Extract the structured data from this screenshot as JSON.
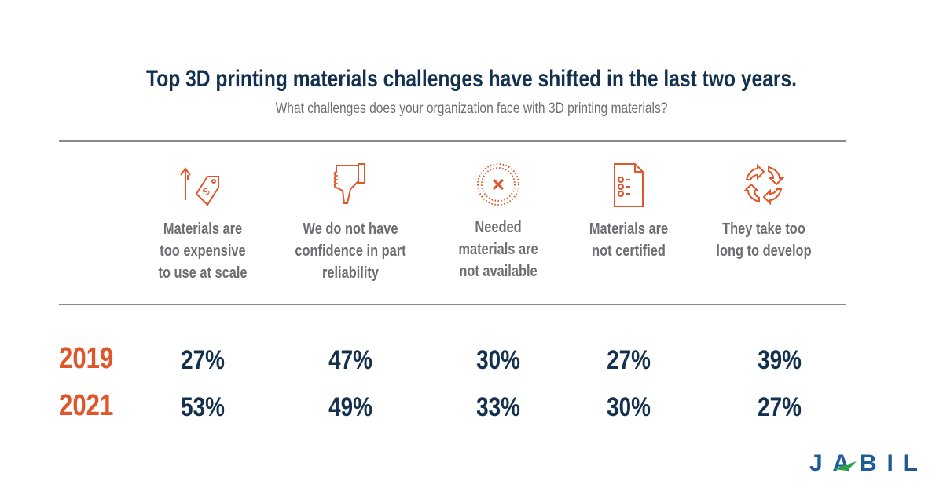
{
  "title": "Top 3D printing materials challenges have shifted in the last two years.",
  "subtitle": "What challenges does your organization face with 3D printing materials?",
  "logo_text": "JABIL",
  "colors": {
    "accent": "#e0552a",
    "navy": "#13304e",
    "gray": "#6d6e71",
    "logo_blue": "#1f5b97",
    "logo_green": "#2aa24a"
  },
  "chart_data": {
    "type": "table",
    "title": "Top 3D printing materials challenges have shifted in the last two years.",
    "categories": [
      {
        "lines": [
          "Materials are",
          "too expensive",
          "to use at scale"
        ],
        "icon": "price-tag-up-icon"
      },
      {
        "lines": [
          "We do not have",
          "confidence in part",
          "reliability"
        ],
        "icon": "thumbs-down-icon"
      },
      {
        "lines": [
          "Needed",
          "materials are",
          "not available"
        ],
        "icon": "circle-x-icon"
      },
      {
        "lines": [
          "Materials are",
          "not certified"
        ],
        "icon": "checklist-x-icon"
      },
      {
        "lines": [
          "They take too",
          "long to develop"
        ],
        "icon": "cycle-arrows-icon"
      }
    ],
    "series": [
      {
        "name": "2019",
        "values": [
          "27%",
          "47%",
          "30%",
          "27%",
          "39%"
        ]
      },
      {
        "name": "2021",
        "values": [
          "53%",
          "49%",
          "33%",
          "30%",
          "27%"
        ]
      }
    ]
  }
}
